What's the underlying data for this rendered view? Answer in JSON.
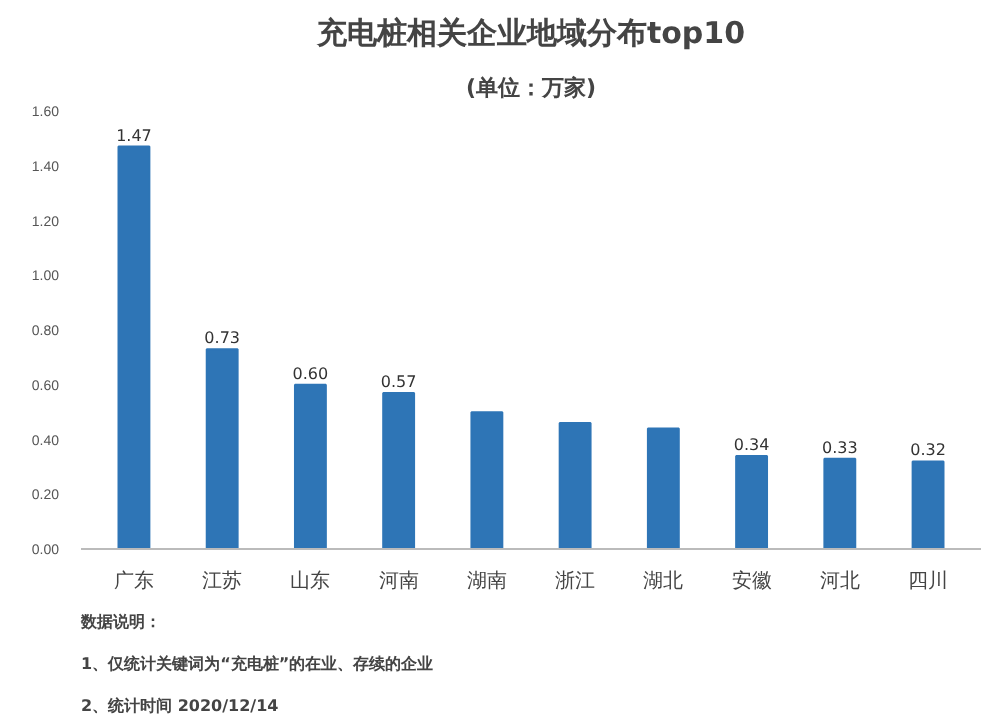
{
  "chart_data": {
    "type": "bar",
    "title": "充电桩相关企业地域分布top10",
    "subtitle": "(单位：万家)",
    "categories": [
      "广东",
      "江苏",
      "山东",
      "河南",
      "湖南",
      "浙江",
      "湖北",
      "安徽",
      "河北",
      "四川"
    ],
    "values": [
      1.47,
      0.73,
      0.6,
      0.57,
      0.5,
      0.46,
      0.44,
      0.34,
      0.33,
      0.32
    ],
    "value_labels": [
      "1.47",
      "0.73",
      "0.60",
      "0.57",
      null,
      null,
      null,
      "0.34",
      "0.33",
      "0.32"
    ],
    "color": "#2e75b6",
    "ylim": [
      0,
      1.6
    ],
    "yticks": [
      {
        "value": 0,
        "label": "0.00"
      },
      {
        "value": 0.2,
        "label": "0.20"
      },
      {
        "value": 0.4,
        "label": "0.40"
      },
      {
        "value": 0.6,
        "label": "0.60"
      },
      {
        "value": 0.8,
        "label": "0.80"
      },
      {
        "value": 1.0,
        "label": "1.00"
      },
      {
        "value": 1.2,
        "label": "1.20"
      },
      {
        "value": 1.4,
        "label": "1.40"
      },
      {
        "value": 1.6,
        "label": "1.60"
      }
    ],
    "grid": false,
    "annotations": [
      "数据说明：",
      "1、仅统计关键词为“充电桩”的在业、存续的企业",
      "2、统计时间 2020/12/14"
    ]
  }
}
